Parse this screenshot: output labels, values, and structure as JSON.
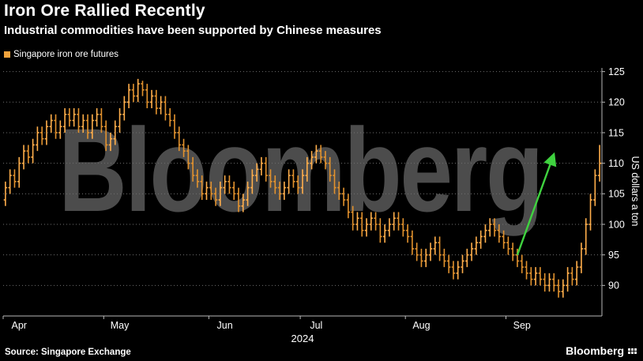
{
  "header": {
    "title": "Iron Ore Rallied Recently",
    "subtitle": "Industrial commodities have been supported by Chinese measures"
  },
  "legend": {
    "label": "Singapore iron ore futures",
    "color": "#F2A33C"
  },
  "watermark": {
    "text": "Bloomberg"
  },
  "footer": {
    "source": "Source: Singapore Exchange",
    "brand": "Bloomberg"
  },
  "chart_data": {
    "type": "bar",
    "subtype": "ohlc-daily-bars",
    "title": "Iron Ore Rallied Recently",
    "series_name": "Singapore iron ore futures",
    "ylabel": "US dollars a ton",
    "xlabel": "2024",
    "ylim": [
      85,
      125.6
    ],
    "y_ticks": [
      90,
      95,
      100,
      105,
      110,
      115,
      120,
      125
    ],
    "x_months": [
      "Apr",
      "May",
      "Jun",
      "Jul",
      "Aug",
      "Sep"
    ],
    "month_start_indices": [
      0,
      22,
      45,
      65,
      88,
      110
    ],
    "year": "2024",
    "grid": "dotted-horizontal",
    "legend_position": "top-left",
    "bar_up_color": "#FFAE4B",
    "bar_down_color": "#E2922E",
    "grid_color": "#6f6f6f",
    "axis_color": "#b9b9b9",
    "candles": [
      [
        104,
        107,
        103,
        106
      ],
      [
        106,
        109,
        105,
        108
      ],
      [
        108,
        109,
        106,
        107
      ],
      [
        107,
        111,
        106,
        110
      ],
      [
        110,
        113,
        109,
        112
      ],
      [
        112,
        113,
        110,
        111
      ],
      [
        111,
        114,
        110,
        113
      ],
      [
        113,
        116,
        112,
        115
      ],
      [
        115,
        116,
        113,
        114
      ],
      [
        114,
        117,
        113,
        116
      ],
      [
        116,
        118,
        115,
        117
      ],
      [
        117,
        118,
        114,
        115
      ],
      [
        115,
        117,
        114,
        116
      ],
      [
        116,
        119,
        115,
        118
      ],
      [
        118,
        119,
        116,
        117
      ],
      [
        117,
        119,
        116,
        118
      ],
      [
        118,
        119,
        115,
        116
      ],
      [
        116,
        118,
        115,
        117
      ],
      [
        117,
        118,
        114,
        115
      ],
      [
        115,
        118,
        114,
        117
      ],
      [
        117,
        119,
        116,
        118
      ],
      [
        118,
        119,
        115,
        116
      ],
      [
        116,
        117,
        112,
        113
      ],
      [
        113,
        115,
        112,
        114
      ],
      [
        114,
        117,
        113,
        116
      ],
      [
        116,
        119,
        115,
        118
      ],
      [
        118,
        121,
        117,
        120
      ],
      [
        120,
        123,
        119,
        122
      ],
      [
        122,
        123,
        120,
        121
      ],
      [
        121,
        123.8,
        120,
        123
      ],
      [
        123,
        123.5,
        121,
        122
      ],
      [
        122,
        123,
        119,
        120
      ],
      [
        120,
        122,
        119,
        121
      ],
      [
        121,
        122,
        118,
        119
      ],
      [
        119,
        121,
        118,
        120
      ],
      [
        120,
        121,
        117,
        118
      ],
      [
        118,
        119,
        116,
        117
      ],
      [
        117,
        118,
        114,
        115
      ],
      [
        115,
        116,
        112,
        113
      ],
      [
        113,
        114,
        111,
        112
      ],
      [
        112,
        113,
        109,
        110
      ],
      [
        110,
        111,
        107,
        108
      ],
      [
        108,
        109,
        106,
        107
      ],
      [
        107,
        108,
        104,
        105
      ],
      [
        105,
        107,
        104,
        106
      ],
      [
        106,
        107,
        104,
        105
      ],
      [
        105,
        106,
        103,
        104
      ],
      [
        104,
        107,
        103,
        106
      ],
      [
        106,
        108,
        105,
        107
      ],
      [
        107,
        108,
        105,
        106
      ],
      [
        106,
        107,
        104,
        105
      ],
      [
        105,
        106,
        102,
        103
      ],
      [
        103,
        105,
        102,
        104
      ],
      [
        104,
        107,
        103,
        106
      ],
      [
        106,
        109,
        105,
        108
      ],
      [
        108,
        110,
        107,
        109
      ],
      [
        109,
        111,
        108,
        110
      ],
      [
        110,
        111,
        107,
        108
      ],
      [
        108,
        109,
        106,
        107
      ],
      [
        107,
        108,
        105,
        106
      ],
      [
        106,
        107,
        104,
        105
      ],
      [
        105,
        107,
        104,
        106
      ],
      [
        106,
        109,
        105,
        108
      ],
      [
        108,
        109,
        106,
        107
      ],
      [
        107,
        108,
        105,
        106
      ],
      [
        106,
        109,
        105,
        108
      ],
      [
        108,
        111,
        107,
        110
      ],
      [
        110,
        112,
        109,
        111
      ],
      [
        111,
        113,
        110,
        112
      ],
      [
        112,
        113,
        110,
        111
      ],
      [
        111,
        112,
        109,
        110
      ],
      [
        110,
        111,
        107,
        108
      ],
      [
        108,
        109,
        105,
        106
      ],
      [
        106,
        107,
        104,
        105
      ],
      [
        105,
        106,
        103,
        104
      ],
      [
        104,
        105,
        101,
        102
      ],
      [
        102,
        103,
        99,
        100
      ],
      [
        100,
        102,
        99,
        101
      ],
      [
        101,
        102,
        98,
        99
      ],
      [
        99,
        101,
        98,
        100
      ],
      [
        100,
        102,
        99,
        101
      ],
      [
        101,
        102,
        99,
        100
      ],
      [
        100,
        101,
        97,
        98
      ],
      [
        98,
        100,
        97,
        99
      ],
      [
        99,
        101,
        98,
        100
      ],
      [
        100,
        102,
        99,
        101
      ],
      [
        101,
        102,
        99,
        100
      ],
      [
        100,
        101,
        98,
        99
      ],
      [
        99,
        100,
        97,
        98
      ],
      [
        98,
        99,
        95,
        96
      ],
      [
        96,
        97,
        94,
        95
      ],
      [
        95,
        96,
        93,
        94
      ],
      [
        94,
        96,
        93,
        95
      ],
      [
        95,
        97,
        94,
        96
      ],
      [
        96,
        98,
        95,
        97
      ],
      [
        97,
        98,
        94,
        95
      ],
      [
        95,
        96,
        93,
        94
      ],
      [
        94,
        95,
        92,
        93
      ],
      [
        93,
        94,
        91,
        92
      ],
      [
        92,
        94,
        91,
        93
      ],
      [
        93,
        95,
        92,
        94
      ],
      [
        94,
        96,
        93,
        95
      ],
      [
        95,
        97,
        94,
        96
      ],
      [
        96,
        98,
        95,
        97
      ],
      [
        97,
        99,
        96,
        98
      ],
      [
        98,
        100,
        97,
        99
      ],
      [
        99,
        101,
        98,
        100
      ],
      [
        100,
        101,
        98,
        99
      ],
      [
        99,
        100,
        97,
        98
      ],
      [
        98,
        99,
        96,
        97
      ],
      [
        97,
        98,
        95,
        96
      ],
      [
        96,
        97,
        94,
        95
      ],
      [
        95,
        96,
        93,
        94
      ],
      [
        94,
        95,
        92,
        93
      ],
      [
        93,
        94,
        91,
        92
      ],
      [
        92,
        93,
        90,
        91
      ],
      [
        91,
        93,
        90,
        92
      ],
      [
        92,
        93,
        90,
        91
      ],
      [
        91,
        92,
        89,
        90
      ],
      [
        90,
        92,
        89,
        91
      ],
      [
        91,
        92,
        89,
        90
      ],
      [
        90,
        91,
        88,
        89
      ],
      [
        89,
        91,
        88,
        90
      ],
      [
        90,
        93,
        89,
        92
      ],
      [
        92,
        93,
        90,
        91
      ],
      [
        91,
        94,
        90,
        93
      ],
      [
        93,
        97,
        92,
        96
      ],
      [
        96,
        101,
        95,
        100
      ],
      [
        100,
        105,
        99,
        104
      ],
      [
        104,
        109,
        103,
        108
      ],
      [
        108,
        113,
        107,
        110
      ]
    ],
    "annotation_arrow": {
      "note": "rally",
      "color": "#3FD23F",
      "from": {
        "i": 112,
        "price": 95
      },
      "to": {
        "i": 120,
        "price": 111.5
      }
    }
  }
}
